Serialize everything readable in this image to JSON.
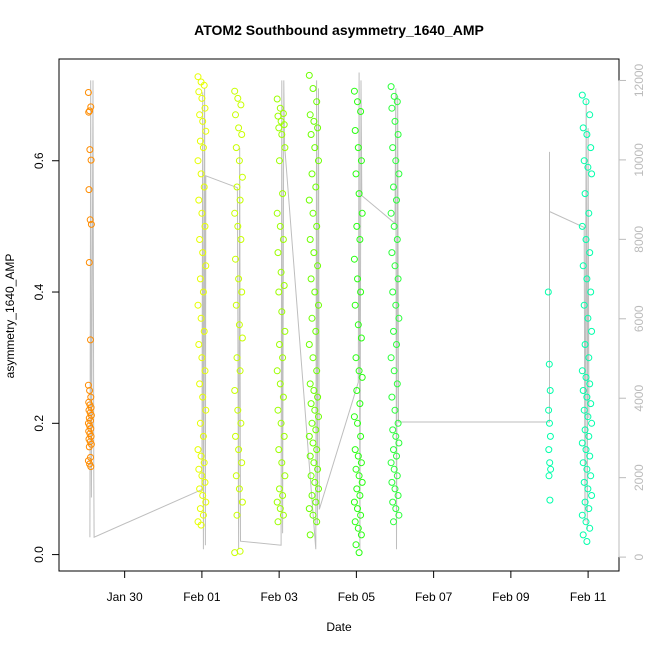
{
  "chart_data": {
    "type": "scatter",
    "title": "ATOM2 Southbound asymmetry_1640_AMP",
    "xlabel": "Date",
    "ylabel": "asymmetry_1640_AMP",
    "x_ticks": [
      "Jan 30",
      "Feb 01",
      "Feb 03",
      "Feb 05",
      "Feb 07",
      "Feb 09",
      "Feb 11"
    ],
    "x_tick_days": [
      30,
      32,
      34,
      36,
      38,
      40,
      42
    ],
    "xlim_days": [
      28.3,
      42.8
    ],
    "y_ticks": [
      "0.0",
      "0.2",
      "0.4",
      "0.6"
    ],
    "y_tick_values": [
      0,
      0.2,
      0.4,
      0.6
    ],
    "ylim": [
      -0.025,
      0.755
    ],
    "y2_ticks": [
      "0",
      "2000",
      "4000",
      "6000",
      "8000",
      "10000",
      "12000"
    ],
    "y2_tick_values": [
      0,
      2000,
      4000,
      6000,
      8000,
      10000,
      12000
    ],
    "y2lim": [
      -350,
      12540
    ],
    "grid": false,
    "legend": "none",
    "point_colors": [
      "#ff8c00",
      "#e6ff00",
      "#c8ff00",
      "#9cff00",
      "#6cff00",
      "#28ff10",
      "#2aff3a",
      "#00ffaa"
    ],
    "line_color": "#bebebe",
    "clusters": [
      {
        "day": 29.1,
        "half_width": 0.04,
        "y": [
          0.704,
          0.676,
          0.682,
          0.674,
          0.617,
          0.601,
          0.556,
          0.51,
          0.503,
          0.445,
          0.327,
          0.258,
          0.25,
          0.24,
          0.232,
          0.228,
          0.224,
          0.22,
          0.216,
          0.212,
          0.208,
          0.204,
          0.2,
          0.196,
          0.192,
          0.188,
          0.184,
          0.18,
          0.176,
          0.172,
          0.168,
          0.164,
          0.148,
          0.143,
          0.138,
          0.134
        ]
      },
      {
        "day": 32.0,
        "half_width": 0.1,
        "y": [
          0.728,
          0.72,
          0.715,
          0.705,
          0.695,
          0.68,
          0.67,
          0.66,
          0.645,
          0.63,
          0.62,
          0.6,
          0.58,
          0.56,
          0.54,
          0.52,
          0.5,
          0.48,
          0.46,
          0.44,
          0.42,
          0.4,
          0.38,
          0.36,
          0.34,
          0.32,
          0.3,
          0.28,
          0.26,
          0.24,
          0.22,
          0.2,
          0.18,
          0.16,
          0.15,
          0.14,
          0.13,
          0.12,
          0.11,
          0.1,
          0.09,
          0.08,
          0.07,
          0.06,
          0.05,
          0.045
        ]
      },
      {
        "day": 32.95,
        "half_width": 0.1,
        "y": [
          0.706,
          0.695,
          0.685,
          0.67,
          0.65,
          0.64,
          0.62,
          0.6,
          0.575,
          0.56,
          0.54,
          0.52,
          0.5,
          0.48,
          0.45,
          0.42,
          0.4,
          0.38,
          0.35,
          0.33,
          0.3,
          0.28,
          0.25,
          0.22,
          0.2,
          0.18,
          0.16,
          0.14,
          0.12,
          0.1,
          0.08,
          0.06,
          0.005,
          0.003
        ]
      },
      {
        "day": 34.05,
        "half_width": 0.1,
        "y": [
          0.694,
          0.68,
          0.672,
          0.668,
          0.66,
          0.655,
          0.65,
          0.64,
          0.62,
          0.6,
          0.55,
          0.52,
          0.5,
          0.48,
          0.46,
          0.43,
          0.41,
          0.4,
          0.37,
          0.34,
          0.32,
          0.3,
          0.28,
          0.26,
          0.24,
          0.22,
          0.2,
          0.18,
          0.16,
          0.14,
          0.12,
          0.1,
          0.09,
          0.08,
          0.07,
          0.06,
          0.05
        ]
      },
      {
        "day": 34.9,
        "half_width": 0.12,
        "y": [
          0.73,
          0.71,
          0.69,
          0.67,
          0.66,
          0.65,
          0.64,
          0.62,
          0.6,
          0.58,
          0.56,
          0.54,
          0.52,
          0.5,
          0.48,
          0.46,
          0.44,
          0.42,
          0.4,
          0.38,
          0.36,
          0.34,
          0.32,
          0.3,
          0.28,
          0.26,
          0.25,
          0.24,
          0.23,
          0.22,
          0.21,
          0.2,
          0.19,
          0.18,
          0.17,
          0.16,
          0.15,
          0.14,
          0.13,
          0.12,
          0.11,
          0.1,
          0.09,
          0.08,
          0.07,
          0.06,
          0.05,
          0.03
        ]
      },
      {
        "day": 36.05,
        "half_width": 0.1,
        "y": [
          0.706,
          0.69,
          0.675,
          0.646,
          0.62,
          0.6,
          0.58,
          0.55,
          0.52,
          0.5,
          0.48,
          0.45,
          0.42,
          0.4,
          0.38,
          0.35,
          0.33,
          0.3,
          0.28,
          0.27,
          0.25,
          0.23,
          0.21,
          0.2,
          0.18,
          0.16,
          0.15,
          0.14,
          0.13,
          0.12,
          0.11,
          0.1,
          0.09,
          0.08,
          0.07,
          0.06,
          0.05,
          0.04,
          0.03,
          0.015,
          0.003
        ]
      },
      {
        "day": 37.0,
        "half_width": 0.1,
        "y": [
          0.713,
          0.698,
          0.69,
          0.68,
          0.66,
          0.64,
          0.62,
          0.6,
          0.58,
          0.56,
          0.54,
          0.52,
          0.5,
          0.48,
          0.46,
          0.44,
          0.42,
          0.4,
          0.38,
          0.36,
          0.34,
          0.32,
          0.3,
          0.28,
          0.26,
          0.24,
          0.22,
          0.2,
          0.19,
          0.18,
          0.17,
          0.16,
          0.15,
          0.14,
          0.13,
          0.12,
          0.11,
          0.1,
          0.09,
          0.08,
          0.07,
          0.06,
          0.05
        ]
      },
      {
        "day": 41.0,
        "half_width": 0.03,
        "y": [
          0.4,
          0.29,
          0.25,
          0.22,
          0.2,
          0.18,
          0.16,
          0.14,
          0.13,
          0.12,
          0.083
        ]
      },
      {
        "day": 41.97,
        "half_width": 0.12,
        "y": [
          0.7,
          0.69,
          0.67,
          0.65,
          0.64,
          0.62,
          0.6,
          0.59,
          0.58,
          0.55,
          0.52,
          0.5,
          0.48,
          0.46,
          0.44,
          0.42,
          0.4,
          0.38,
          0.36,
          0.34,
          0.32,
          0.3,
          0.28,
          0.27,
          0.26,
          0.25,
          0.24,
          0.23,
          0.22,
          0.21,
          0.2,
          0.19,
          0.18,
          0.17,
          0.16,
          0.15,
          0.14,
          0.13,
          0.12,
          0.11,
          0.1,
          0.09,
          0.08,
          0.07,
          0.06,
          0.05,
          0.04,
          0.03,
          0.02
        ]
      }
    ],
    "line_path": [
      {
        "day": 29.1,
        "y2": 500
      },
      {
        "day": 29.12,
        "y2": 12000
      },
      {
        "day": 29.14,
        "y2": 1500
      },
      {
        "day": 29.18,
        "y2": 12000
      },
      {
        "day": 29.2,
        "y2": 2000
      },
      {
        "day": 29.21,
        "y2": 500
      },
      {
        "day": 32.0,
        "y2": 1700
      },
      {
        "day": 32.02,
        "y2": 11700
      },
      {
        "day": 32.04,
        "y2": 200
      },
      {
        "day": 32.07,
        "y2": 11800
      },
      {
        "day": 32.09,
        "y2": 300
      },
      {
        "day": 32.1,
        "y2": 9600
      },
      {
        "day": 32.92,
        "y2": 9300
      },
      {
        "day": 32.95,
        "y2": 200
      },
      {
        "day": 32.98,
        "y2": 10300
      },
      {
        "day": 33.0,
        "y2": 400
      },
      {
        "day": 34.05,
        "y2": 300
      },
      {
        "day": 34.07,
        "y2": 12000
      },
      {
        "day": 34.09,
        "y2": 600
      },
      {
        "day": 34.12,
        "y2": 12000
      },
      {
        "day": 34.14,
        "y2": 10400
      },
      {
        "day": 34.95,
        "y2": 200
      },
      {
        "day": 34.97,
        "y2": 12000
      },
      {
        "day": 34.99,
        "y2": 800
      },
      {
        "day": 35.02,
        "y2": 11800
      },
      {
        "day": 35.04,
        "y2": 1200
      },
      {
        "day": 36.05,
        "y2": 4400
      },
      {
        "day": 36.07,
        "y2": 12200
      },
      {
        "day": 36.09,
        "y2": 200
      },
      {
        "day": 36.12,
        "y2": 12000
      },
      {
        "day": 36.14,
        "y2": 9100
      },
      {
        "day": 37.0,
        "y2": 8400
      },
      {
        "day": 37.02,
        "y2": 11800
      },
      {
        "day": 37.04,
        "y2": 200
      },
      {
        "day": 37.07,
        "y2": 11600
      },
      {
        "day": 37.09,
        "y2": 3400
      },
      {
        "day": 41.0,
        "y2": 3400
      },
      {
        "day": 41.0,
        "y2": 10200
      },
      {
        "day": 41.0,
        "y2": 8700
      },
      {
        "day": 41.9,
        "y2": 8300
      },
      {
        "day": 41.92,
        "y2": 900
      },
      {
        "day": 41.95,
        "y2": 11500
      },
      {
        "day": 41.98,
        "y2": 700
      },
      {
        "day": 42.0,
        "y2": 10800
      },
      {
        "day": 42.02,
        "y2": 3500
      }
    ]
  }
}
